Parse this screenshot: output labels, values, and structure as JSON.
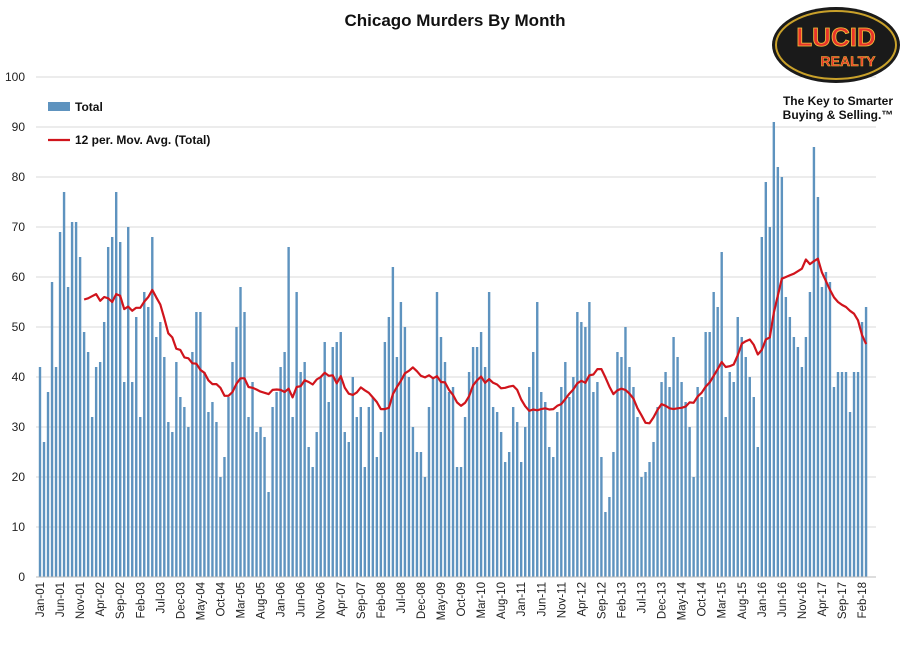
{
  "chart_data": {
    "type": "bar",
    "title": "Chicago  Murders  By Month",
    "xlabel": "",
    "ylabel": "",
    "ylim": [
      0,
      100
    ],
    "yticks": [
      0,
      10,
      20,
      30,
      40,
      50,
      60,
      70,
      80,
      90,
      100
    ],
    "grid": true,
    "legend_position": "top-left",
    "x_start": "Jan-01",
    "x_tick_labels": [
      "Jan-01",
      "Jun-01",
      "Nov-01",
      "Apr-02",
      "Sep-02",
      "Feb-03",
      "Jul-03",
      "Dec-03",
      "May-04",
      "Oct-04",
      "Mar-05",
      "Aug-05",
      "Jan-06",
      "Jun-06",
      "Nov-06",
      "Apr-07",
      "Sep-07",
      "Feb-08",
      "Jul-08",
      "Dec-08",
      "May-09",
      "Oct-09",
      "Mar-10",
      "Aug-10",
      "Jan-11",
      "Jun-11",
      "Nov-11",
      "Apr-12",
      "Sep-12",
      "Feb-13",
      "Jul-13",
      "Dec-13",
      "May-14",
      "Oct-14",
      "Mar-15",
      "Aug-15",
      "Jan-16",
      "Jun-16",
      "Nov-16",
      "Apr-17",
      "Sep-17",
      "Feb-18"
    ],
    "series": [
      {
        "name": "Total",
        "kind": "bar",
        "color": "#5e93bf",
        "values": [
          42,
          27,
          37,
          59,
          42,
          69,
          77,
          58,
          71,
          71,
          64,
          49,
          45,
          32,
          42,
          43,
          51,
          66,
          68,
          77,
          67,
          39,
          70,
          39,
          52,
          32,
          57,
          54,
          68,
          48,
          51,
          44,
          31,
          29,
          43,
          36,
          34,
          30,
          45,
          53,
          53,
          41,
          33,
          35,
          31,
          20,
          24,
          36,
          43,
          50,
          58,
          53,
          32,
          39,
          29,
          30,
          28,
          17,
          34,
          37,
          42,
          45,
          66,
          32,
          57,
          41,
          43,
          26,
          22,
          29,
          40,
          47,
          35,
          46,
          47,
          49,
          29,
          27,
          40,
          32,
          34,
          22,
          34,
          36,
          24,
          29,
          47,
          52,
          62,
          44,
          55,
          50,
          40,
          30,
          25,
          25,
          20,
          34,
          40,
          57,
          48,
          43,
          37,
          38,
          22,
          22,
          32,
          41,
          46,
          46,
          49,
          42,
          57,
          34,
          33,
          29,
          23,
          25,
          34,
          31,
          23,
          30,
          38,
          45,
          55,
          37,
          35,
          26,
          24,
          33,
          38,
          43,
          36,
          40,
          53,
          51,
          50,
          55,
          37,
          39,
          24,
          13,
          16,
          25,
          45,
          44,
          50,
          42,
          38,
          32,
          20,
          21,
          23,
          27,
          34,
          39,
          41,
          38,
          48,
          44,
          39,
          35,
          30,
          20,
          38,
          36,
          49,
          49,
          57,
          54,
          65,
          32,
          41,
          39,
          52,
          48,
          44,
          40,
          36,
          26,
          68,
          79,
          70,
          91,
          82,
          80,
          56,
          52,
          48,
          46,
          42,
          48,
          57,
          86,
          76,
          58,
          61,
          59,
          38,
          41,
          41,
          41,
          33,
          41,
          41,
          51,
          54
        ]
      },
      {
        "name": "12 per. Mov. Avg. (Total)",
        "kind": "line",
        "color": "#d0141c",
        "period": 12
      }
    ]
  },
  "logo": {
    "brand_top": "LUCID",
    "brand_bottom": "REALTY",
    "tagline_line1": "The Key to Smarter",
    "tagline_line2": "Buying & Selling.™"
  }
}
